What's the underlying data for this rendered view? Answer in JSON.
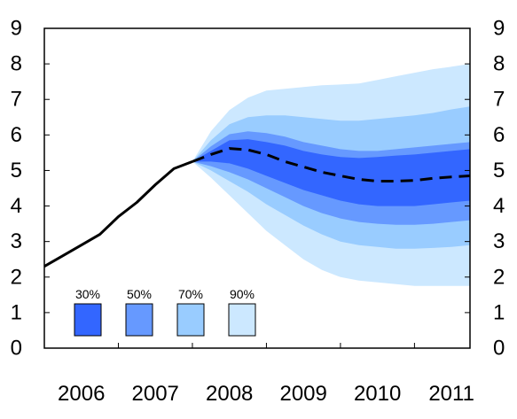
{
  "chart_data": {
    "type": "area",
    "title": "",
    "xlabel": "",
    "ylabel": "",
    "x_ticks": [
      "2006",
      "2007",
      "2008",
      "2009",
      "2010",
      "2011"
    ],
    "y_ticks": [
      "0",
      "1",
      "2",
      "3",
      "4",
      "5",
      "6",
      "7",
      "8",
      "9"
    ],
    "xlim": [
      2006.0,
      2011.75
    ],
    "ylim": [
      0,
      9
    ],
    "grid": false,
    "y_axis_both_sides": true,
    "legend": {
      "placement": "bottom-left",
      "entries": [
        {
          "label": "30%",
          "color": "#3366ff"
        },
        {
          "label": "50%",
          "color": "#6699ff"
        },
        {
          "label": "70%",
          "color": "#99ccff"
        },
        {
          "label": "90%",
          "color": "#cce8ff"
        }
      ]
    },
    "actual": {
      "style": "solid",
      "color": "#000000",
      "x": [
        2006.0,
        2006.25,
        2006.5,
        2006.75,
        2007.0,
        2007.25,
        2007.5,
        2007.75,
        2008.0
      ],
      "y": [
        2.3,
        2.6,
        2.9,
        3.2,
        3.7,
        4.1,
        4.6,
        5.05,
        5.25
      ]
    },
    "projection": {
      "style": "dashed",
      "color": "#000000",
      "x": [
        2008.0,
        2008.25,
        2008.5,
        2008.75,
        2009.0,
        2009.25,
        2009.5,
        2009.75,
        2010.0,
        2010.25,
        2010.5,
        2010.75,
        2011.0,
        2011.25,
        2011.5,
        2011.75
      ],
      "y": [
        5.25,
        5.45,
        5.62,
        5.58,
        5.45,
        5.25,
        5.1,
        4.95,
        4.85,
        4.75,
        4.7,
        4.7,
        4.72,
        4.78,
        4.82,
        4.85
      ]
    },
    "fan_x": [
      2008.0,
      2008.25,
      2008.5,
      2008.75,
      2009.0,
      2009.25,
      2009.5,
      2009.75,
      2010.0,
      2010.25,
      2010.5,
      2010.75,
      2011.0,
      2011.25,
      2011.5,
      2011.75
    ],
    "bands": [
      {
        "name": "90%",
        "color": "#cce8ff",
        "lower": [
          5.25,
          4.8,
          4.3,
          3.8,
          3.3,
          2.9,
          2.5,
          2.2,
          2.0,
          1.9,
          1.85,
          1.8,
          1.75,
          1.75,
          1.75,
          1.75
        ],
        "upper": [
          5.25,
          6.1,
          6.7,
          7.05,
          7.25,
          7.3,
          7.35,
          7.4,
          7.42,
          7.45,
          7.55,
          7.65,
          7.75,
          7.85,
          7.92,
          8.0
        ]
      },
      {
        "name": "70%",
        "color": "#99ccff",
        "lower": [
          5.25,
          5.0,
          4.7,
          4.4,
          4.05,
          3.75,
          3.45,
          3.2,
          3.0,
          2.9,
          2.85,
          2.8,
          2.8,
          2.82,
          2.85,
          2.9
        ],
        "upper": [
          5.25,
          5.85,
          6.3,
          6.5,
          6.55,
          6.55,
          6.5,
          6.45,
          6.4,
          6.4,
          6.45,
          6.5,
          6.55,
          6.62,
          6.72,
          6.8
        ]
      },
      {
        "name": "50%",
        "color": "#6699ff",
        "lower": [
          5.25,
          5.12,
          4.95,
          4.75,
          4.5,
          4.25,
          4.0,
          3.8,
          3.65,
          3.55,
          3.5,
          3.47,
          3.47,
          3.5,
          3.55,
          3.6
        ],
        "upper": [
          5.25,
          5.68,
          6.02,
          6.1,
          6.05,
          5.95,
          5.8,
          5.7,
          5.6,
          5.55,
          5.55,
          5.6,
          5.65,
          5.7,
          5.75,
          5.8
        ]
      },
      {
        "name": "30%",
        "color": "#3366ff",
        "lower": [
          5.25,
          5.25,
          5.2,
          5.05,
          4.85,
          4.65,
          4.45,
          4.3,
          4.15,
          4.05,
          4.0,
          4.0,
          4.0,
          4.05,
          4.1,
          4.15
        ],
        "upper": [
          5.25,
          5.55,
          5.85,
          5.88,
          5.8,
          5.7,
          5.55,
          5.45,
          5.38,
          5.35,
          5.38,
          5.42,
          5.45,
          5.5,
          5.55,
          5.6
        ]
      }
    ]
  }
}
